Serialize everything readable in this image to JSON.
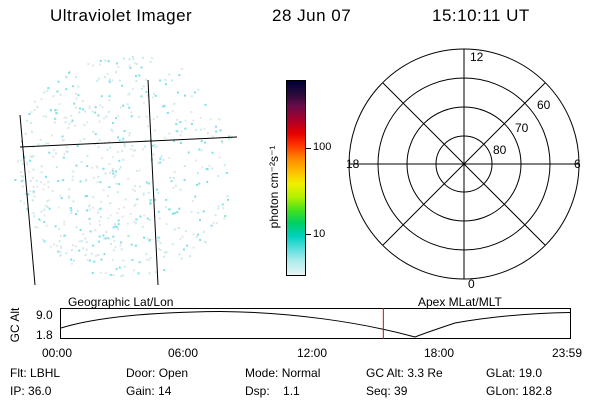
{
  "header": {
    "instrument": "Ultraviolet Imager",
    "date": "28 Jun 07",
    "time": "15:10:11 UT"
  },
  "image_panel": {
    "projection_left": "Geographic Lat/Lon",
    "projection_right": "Apex MLat/MLT",
    "point_color": "#7fe0e6"
  },
  "colorbar": {
    "unit_label": "photon cm⁻²s⁻¹",
    "ticks": [
      "100",
      "10"
    ],
    "scale": "log",
    "colors": [
      "#000033",
      "#2a0a3a",
      "#6a0a4a",
      "#a8002a",
      "#e60000",
      "#ff3300",
      "#ff8800",
      "#ffc000",
      "#f0f000",
      "#b0f000",
      "#40e020",
      "#00d060",
      "#00d0c0",
      "#60e0e0",
      "#b0ecec",
      "#e8f4f4"
    ]
  },
  "polar_plot": {
    "mlt_labels": {
      "top": "12",
      "left": "18",
      "right": "6",
      "bottom": "0"
    },
    "lat_labels": [
      "60",
      "70",
      "80"
    ]
  },
  "altitude_strip": {
    "ylabel": "GC Alt",
    "yticks": [
      "9.0",
      "1.8"
    ],
    "time_ticks": [
      "00:00",
      "06:00",
      "12:00",
      "18:00",
      "23:59"
    ],
    "current_time_fraction": 0.632,
    "marker_color": "#e00000"
  },
  "status": {
    "flt_label": "Flt:",
    "flt_value": "LBHL",
    "ip_label": "IP:",
    "ip_value": "36.0",
    "door_label": "Door:",
    "door_value": "Open",
    "gain_label": "Gain:",
    "gain_value": "14",
    "mode_label": "Mode:",
    "mode_value": "Normal",
    "dsp_label": "Dsp:",
    "dsp_value": "1.1",
    "gcalt_label": "GC Alt:",
    "gcalt_value": "3.3 Re",
    "seq_label": "Seq:",
    "seq_value": "39",
    "glat_label": "GLat:",
    "glat_value": "19.0",
    "glon_label": "GLon:",
    "glon_value": "182.8"
  }
}
